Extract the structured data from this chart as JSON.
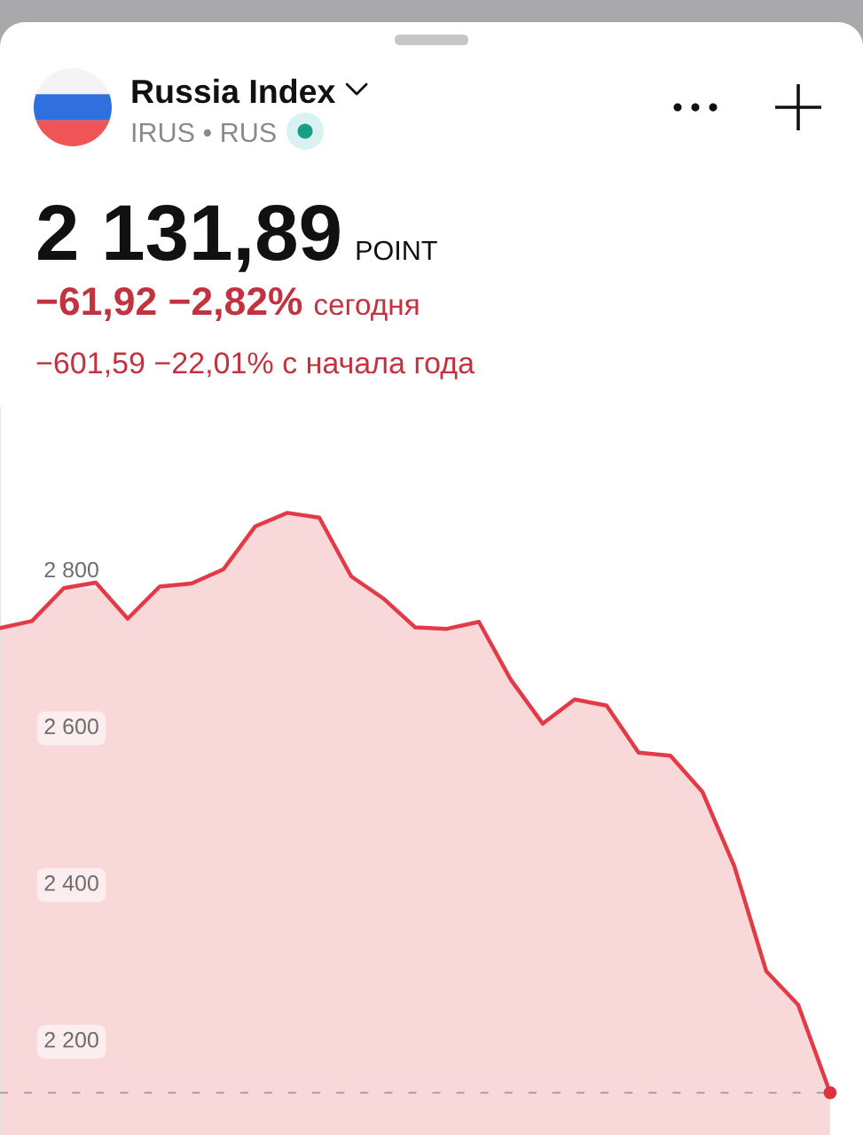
{
  "chart_data": {
    "type": "area",
    "title": "Russia Index",
    "subtitle": "IRUS • RUS",
    "annotations": [
      "2 131,89",
      "POINT",
      "−61,92 −2,82%",
      "сегодня",
      "−601,59 −22,01% с начала года"
    ],
    "categories": [
      null,
      null,
      null,
      null,
      null,
      null,
      null,
      null,
      null,
      null,
      null,
      null,
      null,
      null,
      null,
      null,
      null,
      null,
      null,
      null,
      null,
      null,
      null,
      null,
      null,
      null,
      null
    ],
    "series": [
      {
        "color": "#e23a47",
        "values": [
          2725,
          2734,
          2776,
          2783,
          2737,
          2778,
          2782,
          2800,
          2855,
          2872,
          2866,
          2791,
          2763,
          2726,
          2724,
          2733,
          2659,
          2603,
          2634,
          2626,
          2566,
          2562,
          2516,
          2421,
          2287,
          2244,
          2132
        ]
      },
      {
        "type": "scatter",
        "color": "#e0303e",
        "marker": "circle",
        "values": [
          null,
          null,
          null,
          null,
          null,
          null,
          null,
          null,
          null,
          null,
          null,
          null,
          null,
          null,
          null,
          null,
          null,
          null,
          null,
          null,
          null,
          null,
          null,
          null,
          null,
          null,
          2132
        ]
      }
    ],
    "ylim": [
      2078,
      3006
    ],
    "yticks": [
      {
        "value": 2200,
        "label": "2 200"
      },
      {
        "value": 2400,
        "label": "2 400"
      },
      {
        "value": 2600,
        "label": "2 600"
      },
      {
        "value": 2800,
        "label": "2 800"
      }
    ],
    "ref_lines": [
      {
        "axis": "y",
        "value": 2132,
        "color": "#9a9a9a",
        "line_style": "dashed"
      }
    ],
    "tick_labels": "y"
  }
}
